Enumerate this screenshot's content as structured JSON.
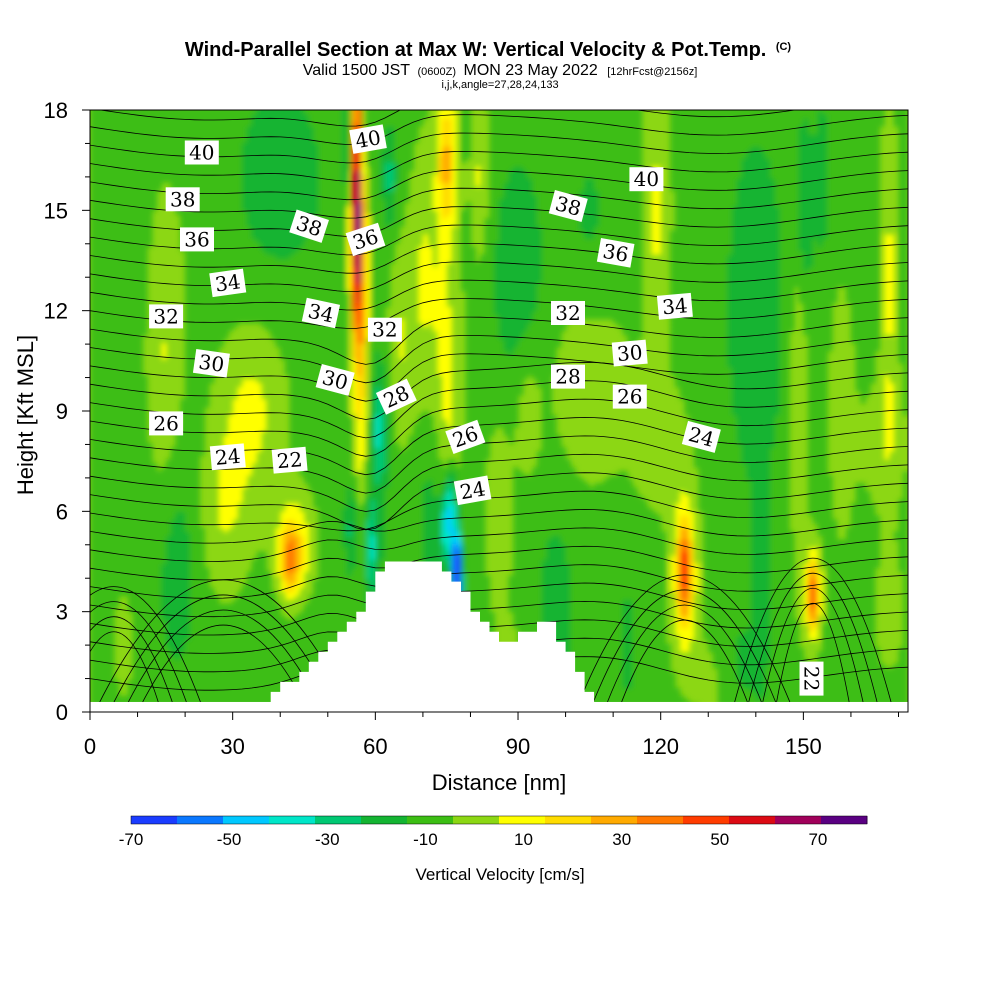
{
  "title": {
    "main": "Wind-Parallel Section at Max W: Vertical Velocity & Pot.Temp.",
    "main_suffix": "(C)",
    "valid_prefix": "Valid 1500 JST",
    "valid_utc": "(0600Z)",
    "valid_date": "MON 23 May 2022",
    "forecast_note": "[12hrFcst@2156z]",
    "indices": "i,j,k,angle=27,28,24,133"
  },
  "chart_data": {
    "type": "heatmap",
    "xlabel": "Distance [nm]",
    "ylabel": "Height [Kft MSL]",
    "xlim": [
      0,
      172
    ],
    "ylim": [
      0,
      18
    ],
    "x_ticks": [
      0,
      30,
      60,
      90,
      120,
      150
    ],
    "y_ticks": [
      0,
      3,
      6,
      9,
      12,
      15,
      18
    ],
    "colorbar": {
      "label": "Vertical Velocity [cm/s]",
      "bounds": [
        -70,
        -60,
        -50,
        -40,
        -30,
        -20,
        -10,
        0,
        10,
        20,
        30,
        40,
        50,
        60,
        70,
        80
      ],
      "colors": [
        "#1a3cff",
        "#0a78ff",
        "#00c8ff",
        "#00e6c8",
        "#00c873",
        "#14b432",
        "#3cbe14",
        "#8cd714",
        "#ffff00",
        "#ffdc00",
        "#ffaa00",
        "#ff7800",
        "#ff3c00",
        "#dc0a14",
        "#a0005a",
        "#5a0082"
      ],
      "tick_labels": [
        "-70",
        "-50",
        "-30",
        "-10",
        "10",
        "30",
        "50",
        "70"
      ],
      "tick_values": [
        -70,
        -50,
        -30,
        -10,
        10,
        30,
        50,
        70
      ]
    },
    "theta_contour_labels": [
      {
        "text": "40",
        "x": 23.5,
        "y": 16.7,
        "angle": 0
      },
      {
        "text": "40",
        "x": 58.5,
        "y": 17.1,
        "angle": -10
      },
      {
        "text": "40",
        "x": 117,
        "y": 15.9,
        "angle": 0
      },
      {
        "text": "38",
        "x": 19.5,
        "y": 15.3,
        "angle": 0
      },
      {
        "text": "38",
        "x": 46,
        "y": 14.5,
        "angle": 18
      },
      {
        "text": "38",
        "x": 100.5,
        "y": 15.1,
        "angle": 15
      },
      {
        "text": "36",
        "x": 22.5,
        "y": 14.1,
        "angle": 0
      },
      {
        "text": "36",
        "x": 58,
        "y": 14.1,
        "angle": -18
      },
      {
        "text": "36",
        "x": 110.5,
        "y": 13.7,
        "angle": 10
      },
      {
        "text": "34",
        "x": 29,
        "y": 12.8,
        "angle": -8
      },
      {
        "text": "34",
        "x": 48.5,
        "y": 11.9,
        "angle": 12
      },
      {
        "text": "34",
        "x": 123,
        "y": 12.1,
        "angle": -5
      },
      {
        "text": "32",
        "x": 16,
        "y": 11.8,
        "angle": 0
      },
      {
        "text": "32",
        "x": 62,
        "y": 11.4,
        "angle": 0
      },
      {
        "text": "32",
        "x": 100.5,
        "y": 11.9,
        "angle": 0
      },
      {
        "text": "30",
        "x": 25.5,
        "y": 10.4,
        "angle": 8
      },
      {
        "text": "30",
        "x": 51.5,
        "y": 9.9,
        "angle": 15
      },
      {
        "text": "30",
        "x": 113.5,
        "y": 10.7,
        "angle": -5
      },
      {
        "text": "28",
        "x": 64.5,
        "y": 9.4,
        "angle": -25
      },
      {
        "text": "28",
        "x": 100.5,
        "y": 10.0,
        "angle": 0
      },
      {
        "text": "26",
        "x": 16,
        "y": 8.6,
        "angle": 0
      },
      {
        "text": "26",
        "x": 79,
        "y": 8.2,
        "angle": -20
      },
      {
        "text": "26",
        "x": 113.5,
        "y": 9.4,
        "angle": 0
      },
      {
        "text": "24",
        "x": 29,
        "y": 7.6,
        "angle": -5
      },
      {
        "text": "24",
        "x": 80.5,
        "y": 6.6,
        "angle": -10
      },
      {
        "text": "24",
        "x": 128.5,
        "y": 8.2,
        "angle": 15
      },
      {
        "text": "22",
        "x": 42,
        "y": 7.5,
        "angle": -5
      },
      {
        "text": "22",
        "x": 151.5,
        "y": 1.0,
        "angle": 90
      }
    ],
    "terrain_heights_kft": [
      0,
      0,
      0,
      0,
      0,
      0,
      0,
      0,
      0,
      0,
      0,
      0,
      0,
      0,
      0,
      0,
      0.3,
      0.3,
      0.3,
      0.6,
      0.9,
      0.9,
      1.2,
      1.5,
      1.8,
      2.1,
      2.4,
      2.7,
      3.0,
      3.6,
      4.2,
      4.5,
      4.5,
      4.5,
      4.5,
      4.5,
      4.5,
      4.2,
      3.9,
      3.6,
      3.0,
      2.7,
      2.4,
      2.1,
      2.1,
      2.4,
      2.4,
      2.7,
      2.7,
      2.1,
      1.8,
      1.2,
      0.6,
      0.3,
      0.3,
      0,
      0,
      0,
      0,
      0,
      0,
      0,
      0,
      0,
      0,
      0,
      0,
      0,
      0,
      0,
      0,
      0,
      0,
      0,
      0,
      0,
      0,
      0,
      0,
      0,
      0,
      0,
      0,
      0,
      0,
      0
    ]
  }
}
